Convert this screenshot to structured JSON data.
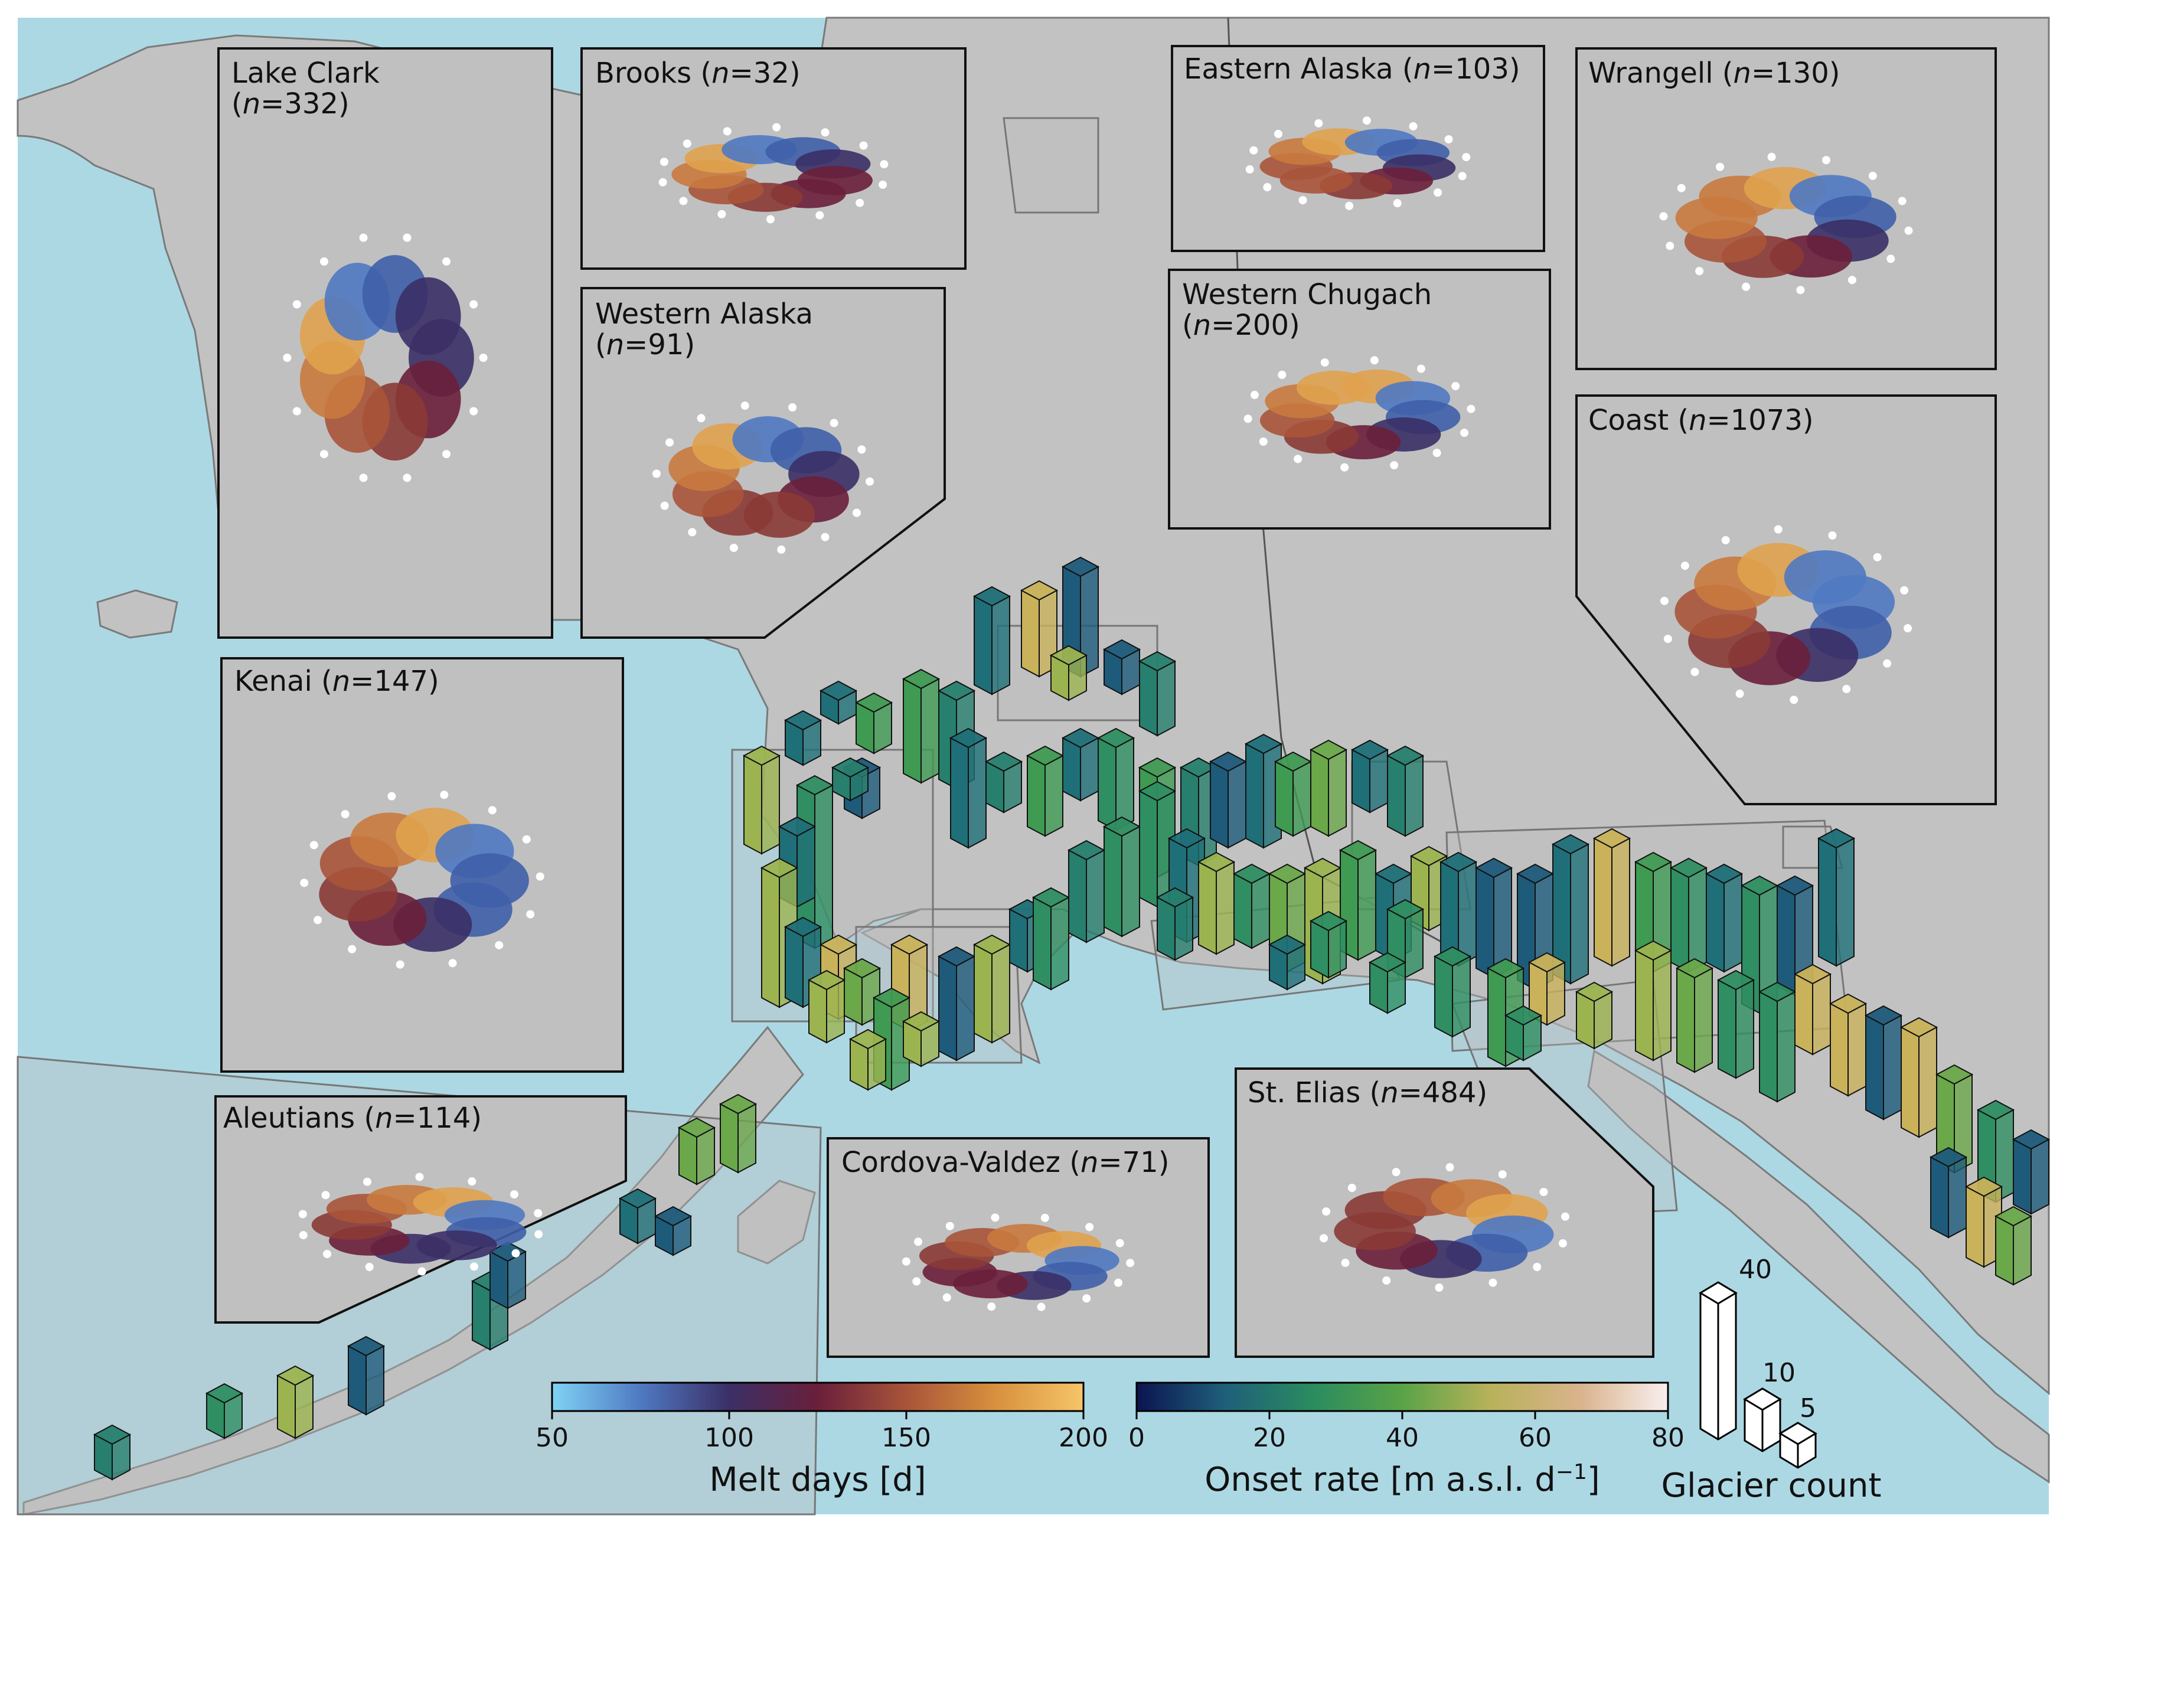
{
  "insets": [
    {
      "id": "lake-clark",
      "name": "Lake Clark",
      "n": "332",
      "wrap": true
    },
    {
      "id": "brooks",
      "name": "Brooks",
      "n": "32",
      "wrap": false
    },
    {
      "id": "western-alaska",
      "name": "Western Alaska",
      "n": "91",
      "wrap": true
    },
    {
      "id": "eastern-alaska",
      "name": "Eastern Alaska",
      "n": "103",
      "wrap": false
    },
    {
      "id": "wrangell",
      "name": "Wrangell",
      "n": "130",
      "wrap": false
    },
    {
      "id": "western-chugach",
      "name": "Western Chugach",
      "n": "200",
      "wrap": true
    },
    {
      "id": "coast",
      "name": "Coast",
      "n": "1073",
      "wrap": false
    },
    {
      "id": "kenai",
      "name": "Kenai",
      "n": "147",
      "wrap": false
    },
    {
      "id": "aleutians",
      "name": "Aleutians",
      "n": "114",
      "wrap": false
    },
    {
      "id": "cordova-valdez",
      "name": "Cordova-Valdez",
      "n": "71",
      "wrap": false
    },
    {
      "id": "st-elias",
      "name": "St. Elias",
      "n": "484",
      "wrap": false
    }
  ],
  "colorbars": {
    "melt": {
      "label": "Melt days [d]",
      "ticks": [
        "50",
        "100",
        "150",
        "200"
      ],
      "colors": [
        "#7fd3f5",
        "#4f79c2",
        "#3b2f66",
        "#6a1f3a",
        "#a8543a",
        "#d8903d",
        "#f6c56a"
      ]
    },
    "onset": {
      "label_main": "Onset rate [m a.s.l. d",
      "label_sup": "−1",
      "label_end": "]",
      "ticks": [
        "0",
        "20",
        "40",
        "60",
        "80"
      ],
      "colors": [
        "#0b1450",
        "#1f5f7a",
        "#2a8c5f",
        "#5aa347",
        "#b8b25a",
        "#d9b38c",
        "#f9efef"
      ]
    }
  },
  "size_legend": {
    "label": "Glacier count",
    "values": [
      "40",
      "10",
      "5"
    ]
  },
  "colors": {
    "ocean": "#acd8e4",
    "land": "#c2c2c2",
    "inset_bg": "#c0c0c0"
  }
}
